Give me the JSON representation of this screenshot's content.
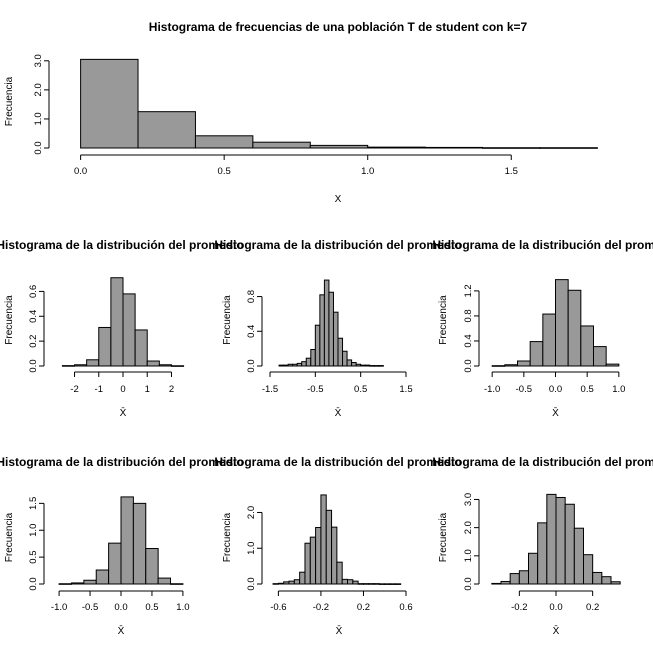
{
  "chart_data": [
    {
      "type": "bar",
      "title": "Histograma de frecuencias de una población T de student con k=7",
      "xlabel": "X",
      "ylabel": "Frecuencia",
      "breaks": [
        0,
        0.2,
        0.4,
        0.6,
        0.8,
        1.0,
        1.2,
        1.4,
        1.6,
        1.8
      ],
      "values": [
        3.05,
        1.25,
        0.42,
        0.2,
        0.09,
        0.03,
        0.02,
        0.01,
        0.01
      ],
      "xticks": [
        "0.0",
        "0.5",
        "1.0",
        "1.5"
      ],
      "xtick_vals": [
        0,
        0.5,
        1.0,
        1.5
      ],
      "yticks": [
        "0.0",
        "1.0",
        "2.0",
        "3.0"
      ],
      "ytick_vals": [
        0,
        1,
        2,
        3
      ],
      "xlim": [
        -0.03,
        1.83
      ],
      "ylim": [
        0,
        3.2
      ]
    },
    {
      "type": "bar",
      "title": "Histograma de la distribución del promedio",
      "xlabel": "X̄",
      "ylabel": "Frecuencia",
      "breaks": [
        -2.5,
        -2,
        -1.5,
        -1,
        -0.5,
        0,
        0.5,
        1,
        1.5,
        2,
        2.5
      ],
      "values": [
        0.003,
        0.01,
        0.05,
        0.31,
        0.71,
        0.58,
        0.29,
        0.04,
        0.01,
        0.002
      ],
      "xticks": [
        "-2",
        "-1",
        "0",
        "1",
        "2"
      ],
      "xtick_vals": [
        -2,
        -1,
        0,
        1,
        2
      ],
      "yticks": [
        "0.0",
        "0.2",
        "0.4",
        "0.6"
      ],
      "ytick_vals": [
        0,
        0.2,
        0.4,
        0.6
      ],
      "xlim": [
        -2.6,
        2.6
      ],
      "ylim": [
        0,
        0.74
      ]
    },
    {
      "type": "bar",
      "title": "Histograma de la distribución del promedio",
      "xlabel": "X̄",
      "ylabel": "Frecuencia",
      "breaks": [
        -1.3,
        -1.2,
        -1.1,
        -1.0,
        -0.9,
        -0.8,
        -0.7,
        -0.6,
        -0.5,
        -0.4,
        -0.3,
        -0.2,
        -0.1,
        0,
        0.1,
        0.2,
        0.3,
        0.4,
        0.5,
        0.6,
        0.7,
        0.8,
        0.9,
        1.0
      ],
      "values": [
        0.01,
        0.01,
        0.02,
        0.02,
        0.03,
        0.05,
        0.09,
        0.19,
        0.47,
        0.82,
        0.99,
        0.85,
        0.62,
        0.32,
        0.17,
        0.07,
        0.04,
        0.02,
        0.01,
        0.01,
        0.005,
        0.005,
        0.005
      ],
      "xticks": [
        "-1.5",
        "-0.5",
        "0.5",
        "1.5"
      ],
      "xtick_vals": [
        -1.5,
        -0.5,
        0.5,
        1.5
      ],
      "yticks": [
        "0.0",
        "0.4",
        "0.8"
      ],
      "ytick_vals": [
        0,
        0.4,
        0.8
      ],
      "xlim": [
        -1.5,
        1.5
      ],
      "ylim": [
        0,
        1.06
      ]
    },
    {
      "type": "bar",
      "title": "Histograma de la distribución del promedio",
      "xlabel": "X̄",
      "ylabel": "Frecuencia",
      "breaks": [
        -1.0,
        -0.8,
        -0.6,
        -0.4,
        -0.2,
        0,
        0.2,
        0.4,
        0.6,
        0.8,
        1.0
      ],
      "values": [
        0.005,
        0.02,
        0.08,
        0.39,
        0.83,
        1.38,
        1.21,
        0.64,
        0.31,
        0.03
      ],
      "xticks": [
        "-1.0",
        "-0.5",
        "0.0",
        "0.5",
        "1.0"
      ],
      "xtick_vals": [
        -1,
        -0.5,
        0,
        0.5,
        1
      ],
      "yticks": [
        "0.0",
        "0.4",
        "0.8",
        "1.2"
      ],
      "ytick_vals": [
        0,
        0.4,
        0.8,
        1.2
      ],
      "xlim": [
        -1.05,
        1.05
      ],
      "ylim": [
        0,
        1.47
      ]
    },
    {
      "type": "bar",
      "title": "Histograma de la distribución del promedio",
      "xlabel": "X̄",
      "ylabel": "Frecuencia",
      "breaks": [
        -1.0,
        -0.8,
        -0.6,
        -0.4,
        -0.2,
        0,
        0.2,
        0.4,
        0.6,
        0.8,
        1.0
      ],
      "values": [
        0.005,
        0.02,
        0.07,
        0.26,
        0.76,
        1.62,
        1.5,
        0.66,
        0.11,
        0.005
      ],
      "xticks": [
        "-1.0",
        "-0.5",
        "0.0",
        "0.5",
        "1.0"
      ],
      "xtick_vals": [
        -1,
        -0.5,
        0,
        0.5,
        1
      ],
      "yticks": [
        "0.0",
        "0.5",
        "1.0",
        "1.5"
      ],
      "ytick_vals": [
        0,
        0.5,
        1,
        1.5
      ],
      "xlim": [
        -1.05,
        1.05
      ],
      "ylim": [
        0,
        1.73
      ]
    },
    {
      "type": "bar",
      "title": "Histograma de la distribución del promedio",
      "xlabel": "X̄",
      "ylabel": "Frecuencia",
      "breaks": [
        -0.65,
        -0.6,
        -0.55,
        -0.5,
        -0.45,
        -0.4,
        -0.35,
        -0.3,
        -0.25,
        -0.2,
        -0.15,
        -0.1,
        -0.05,
        0,
        0.05,
        0.1,
        0.15,
        0.2,
        0.25,
        0.3,
        0.35,
        0.4,
        0.45,
        0.5,
        0.55
      ],
      "values": [
        0.01,
        0.02,
        0.06,
        0.08,
        0.12,
        0.33,
        1.14,
        1.31,
        1.58,
        2.49,
        2.06,
        1.59,
        0.61,
        0.13,
        0.12,
        0.08,
        0.01,
        0.01,
        0.01,
        0.01,
        0.005,
        0.005,
        0.005,
        0.005
      ],
      "xticks": [
        "-0.6",
        "-0.2",
        "0.2",
        "0.6"
      ],
      "xtick_vals": [
        -0.6,
        -0.2,
        0.2,
        0.6
      ],
      "yticks": [
        "0.0",
        "1.0",
        "2.0"
      ],
      "ytick_vals": [
        0,
        1,
        2
      ],
      "xlim": [
        -0.66,
        0.6
      ],
      "ylim": [
        0,
        2.6
      ]
    },
    {
      "type": "bar",
      "title": "Histograma de la distribución del promedio",
      "xlabel": "X̄",
      "ylabel": "Frecuencia",
      "breaks": [
        -0.35,
        -0.3,
        -0.25,
        -0.2,
        -0.15,
        -0.1,
        -0.05,
        0,
        0.05,
        0.1,
        0.15,
        0.2,
        0.25,
        0.3,
        0.35
      ],
      "values": [
        0.02,
        0.09,
        0.37,
        0.47,
        1.09,
        2.17,
        3.18,
        3.07,
        2.83,
        1.98,
        1.04,
        0.41,
        0.26,
        0.08
      ],
      "xticks": [
        "-0.2",
        "0.0",
        "0.2"
      ],
      "xtick_vals": [
        -0.2,
        0,
        0.2
      ],
      "yticks": [
        "0.0",
        "1.0",
        "2.0",
        "3.0"
      ],
      "ytick_vals": [
        0,
        1,
        2,
        3
      ],
      "xlim": [
        -0.36,
        0.36
      ],
      "ylim": [
        0,
        3.3
      ]
    }
  ]
}
